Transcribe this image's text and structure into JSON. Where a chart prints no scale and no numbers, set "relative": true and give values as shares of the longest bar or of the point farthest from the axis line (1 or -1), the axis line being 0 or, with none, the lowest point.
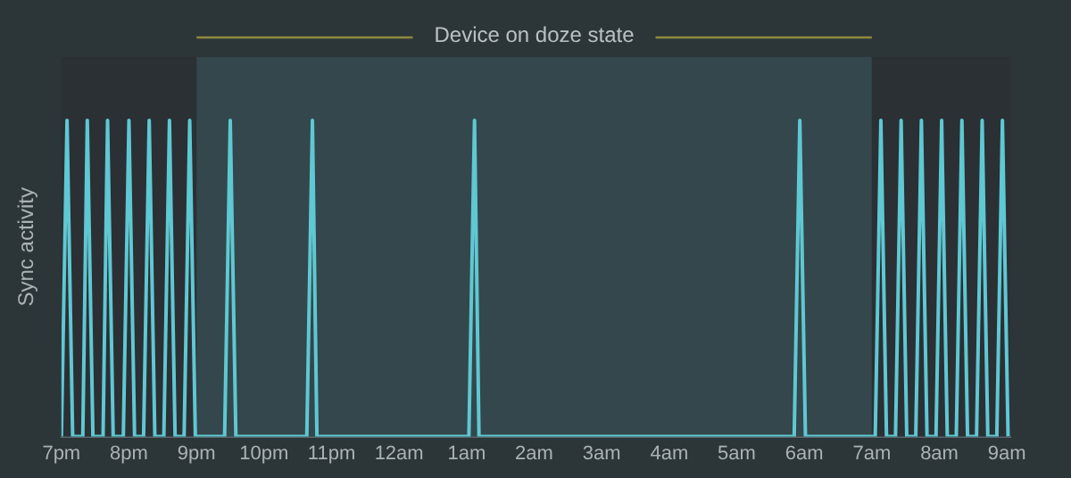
{
  "chart_data": {
    "type": "line",
    "ylabel": "Sync activity",
    "relative": true,
    "legend": false,
    "marker": "none",
    "line_style": "solid",
    "xlim": [
      "--01-01T19:00",
      "--01-02T09:03"
    ],
    "xticks": [
      {
        "value": "--01-01T19:00",
        "label": "7pm"
      },
      {
        "value": "--01-01T20:00",
        "label": "8pm"
      },
      {
        "value": "--01-01T21:00",
        "label": "9pm"
      },
      {
        "value": "--01-01T22:00",
        "label": "10pm"
      },
      {
        "value": "--01-01T23:00",
        "label": "11pm"
      },
      {
        "value": "--01-02T00:00",
        "label": "12am"
      },
      {
        "value": "--01-02T01:00",
        "label": "1am"
      },
      {
        "value": "--01-02T02:00",
        "label": "2am"
      },
      {
        "value": "--01-02T03:00",
        "label": "3am"
      },
      {
        "value": "--01-02T04:00",
        "label": "4am"
      },
      {
        "value": "--01-02T05:00",
        "label": "5am"
      },
      {
        "value": "--01-02T06:00",
        "label": "6am"
      },
      {
        "value": "--01-02T07:00",
        "label": "7am"
      },
      {
        "value": "--01-02T08:00",
        "label": "8am"
      },
      {
        "value": "--01-02T09:00",
        "label": "9am"
      }
    ],
    "bands": [
      {
        "axis": "x",
        "from": "--01-01T21:00",
        "to": "--01-02T07:00",
        "label": "Device on doze state",
        "color": "#34474c"
      },
      {
        "axis": "x",
        "from": "--01-01T19:00",
        "to": "--01-01T21:00",
        "color": "#2b3034"
      },
      {
        "axis": "x",
        "from": "--01-02T07:00",
        "to": "--01-02T09:03",
        "color": "#2b3034"
      }
    ],
    "series": [
      {
        "color": "#5ec8d3",
        "x": [
          "--01-01T19:00",
          "--01-01T19:05",
          "--01-01T19:10",
          "--01-01T19:19",
          "--01-01T19:23",
          "--01-01T19:28",
          "--01-01T19:37",
          "--01-01T19:41",
          "--01-01T19:46",
          "--01-01T19:55",
          "--01-01T20:00",
          "--01-01T20:05",
          "--01-01T20:13",
          "--01-01T20:18",
          "--01-01T20:23",
          "--01-01T20:31",
          "--01-01T20:36",
          "--01-01T20:41",
          "--01-01T20:49",
          "--01-01T20:54",
          "--01-01T20:59",
          "--01-01T21:25",
          "--01-01T21:30",
          "--01-01T21:35",
          "--01-01T22:38",
          "--01-01T22:43",
          "--01-01T22:47",
          "--01-02T01:02",
          "--01-02T01:07",
          "--01-02T01:11",
          "--01-02T05:51",
          "--01-02T05:56",
          "--01-02T06:01",
          "--01-02T07:03",
          "--01-02T07:08",
          "--01-02T07:13",
          "--01-02T07:21",
          "--01-02T07:26",
          "--01-02T07:31",
          "--01-02T07:39",
          "--01-02T07:44",
          "--01-02T07:49",
          "--01-02T07:57",
          "--01-02T08:02",
          "--01-02T08:07",
          "--01-02T08:15",
          "--01-02T08:20",
          "--01-02T08:25",
          "--01-02T08:33",
          "--01-02T08:38",
          "--01-02T08:43",
          "--01-02T08:51",
          "--01-02T08:56",
          "--01-02T09:01"
        ],
        "values": [
          0,
          1,
          0,
          0,
          1,
          0,
          0,
          1,
          0,
          0,
          1,
          0,
          0,
          1,
          0,
          0,
          1,
          0,
          0,
          1,
          0,
          0,
          1,
          0,
          0,
          1,
          0,
          0,
          1,
          0,
          0,
          1,
          0,
          0,
          1,
          0,
          0,
          1,
          0,
          0,
          1,
          0,
          0,
          1,
          0,
          0,
          1,
          0,
          0,
          1,
          0,
          0,
          1,
          0
        ]
      }
    ]
  }
}
